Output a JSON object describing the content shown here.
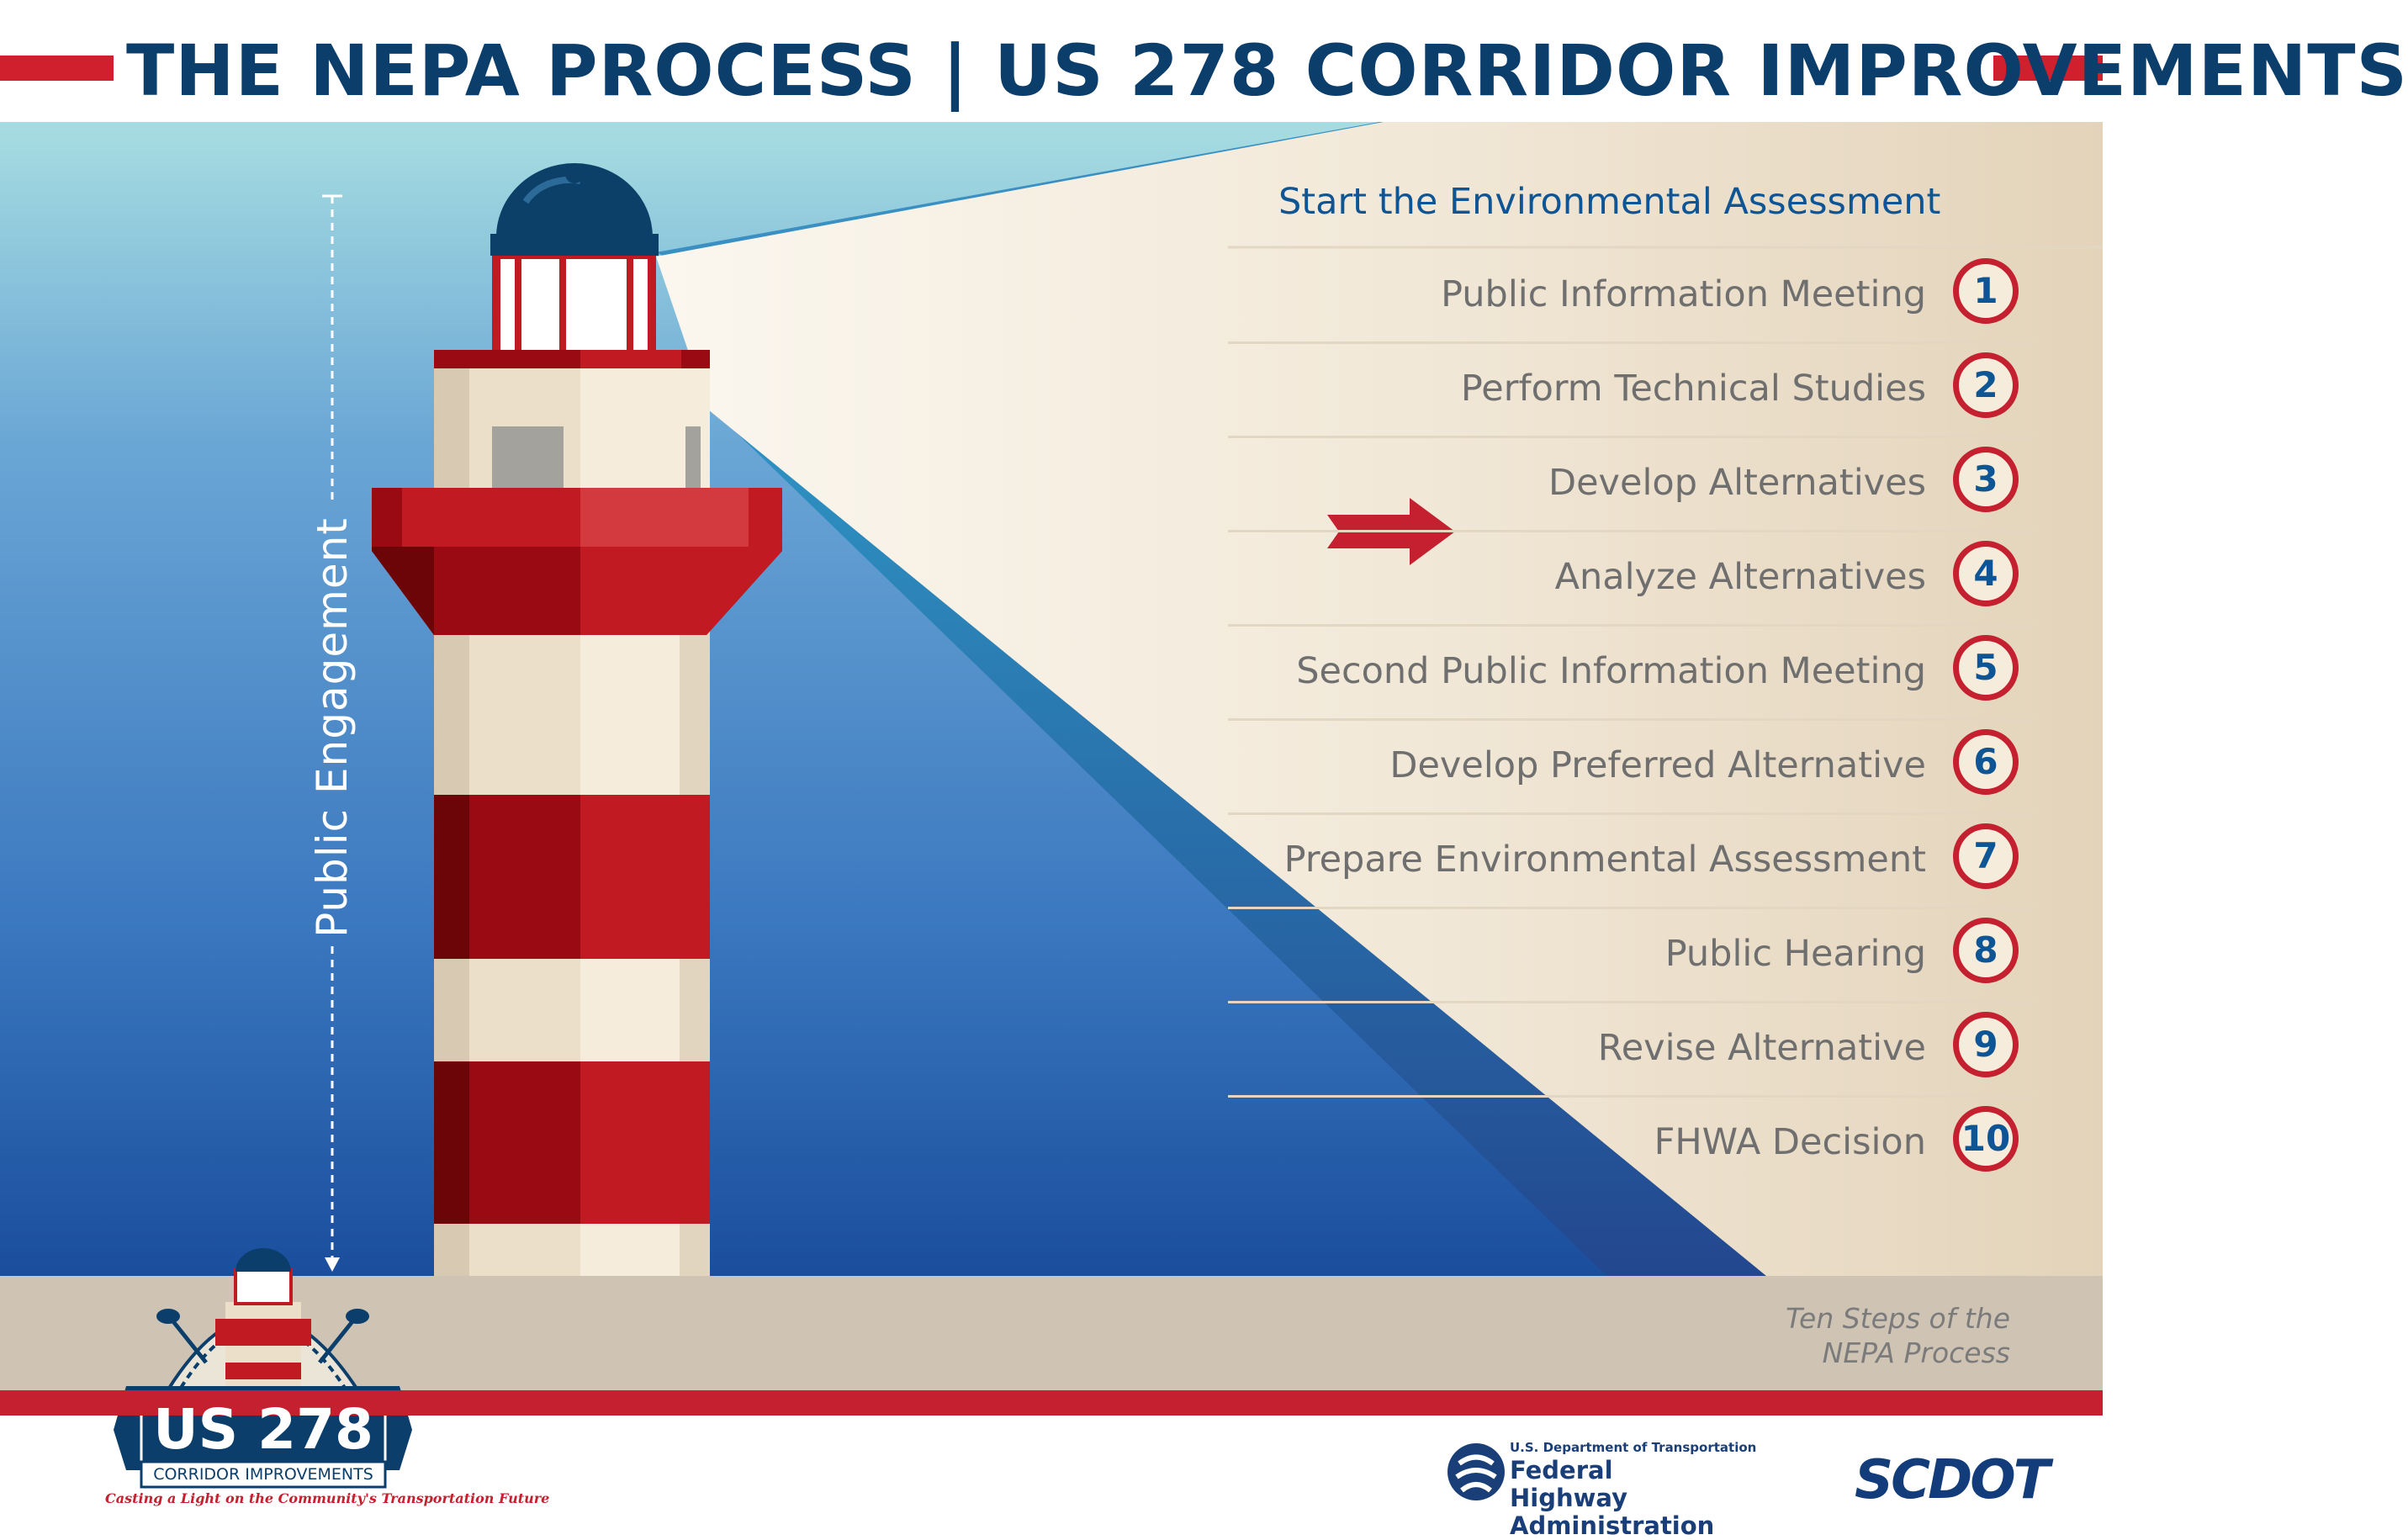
{
  "header": {
    "title": "THE NEPA PROCESS | US 278 CORRIDOR IMPROVEMENTS"
  },
  "engagement": {
    "label": "Public Engagement"
  },
  "process": {
    "start_label": "Start the Environmental Assessment",
    "current_step": 3,
    "steps": [
      {
        "number": "1",
        "label": "Public Information Meeting"
      },
      {
        "number": "2",
        "label": "Perform Technical Studies"
      },
      {
        "number": "3",
        "label": "Develop Alternatives"
      },
      {
        "number": "4",
        "label": "Analyze Alternatives"
      },
      {
        "number": "5",
        "label": "Second Public Information Meeting"
      },
      {
        "number": "6",
        "label": "Develop Preferred Alternative"
      },
      {
        "number": "7",
        "label": "Prepare Environmental Assessment"
      },
      {
        "number": "8",
        "label": "Public Hearing"
      },
      {
        "number": "9",
        "label": "Revise Alternative"
      },
      {
        "number": "10",
        "label": "FHWA Decision"
      }
    ],
    "caption_line1": "Ten Steps of the",
    "caption_line2": "NEPA Process"
  },
  "logo": {
    "name": "US 278",
    "subtitle": "CORRIDOR IMPROVEMENTS",
    "tagline": "Casting a Light on the Community's Transportation Future"
  },
  "footer": {
    "fhwa_dept": "U.S. Department of Transportation",
    "fhwa_line1": "Federal Highway",
    "fhwa_line2": "Administration",
    "scdot": "SCDOT"
  },
  "colors": {
    "navy": "#0c3e6b",
    "red": "#c4202f",
    "sky_top": "#a6dbe0",
    "sky_bottom": "#1c4f9c",
    "beige": "#eadcc6",
    "ground": "#cfc4b4"
  }
}
